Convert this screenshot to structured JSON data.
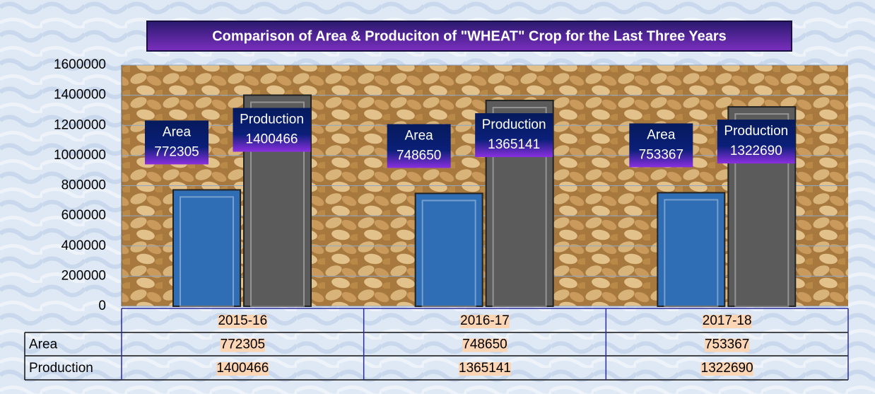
{
  "chart_data": {
    "type": "bar",
    "title": "Comparison of Area & Produciton of  \"WHEAT\" Crop  for the Last Three Years",
    "categories": [
      "2015-16",
      "2016-17",
      "2017-18"
    ],
    "series": [
      {
        "name": "Area",
        "color": "#2f6db5",
        "values": [
          772305,
          748650,
          753367
        ]
      },
      {
        "name": "Production",
        "color": "#5b5b5b",
        "values": [
          1400466,
          1365141,
          1322690
        ]
      }
    ],
    "ylim": [
      0,
      1600000
    ],
    "yticks": [
      0,
      200000,
      400000,
      600000,
      800000,
      1000000,
      1200000,
      1400000,
      1600000
    ],
    "grid": true
  }
}
